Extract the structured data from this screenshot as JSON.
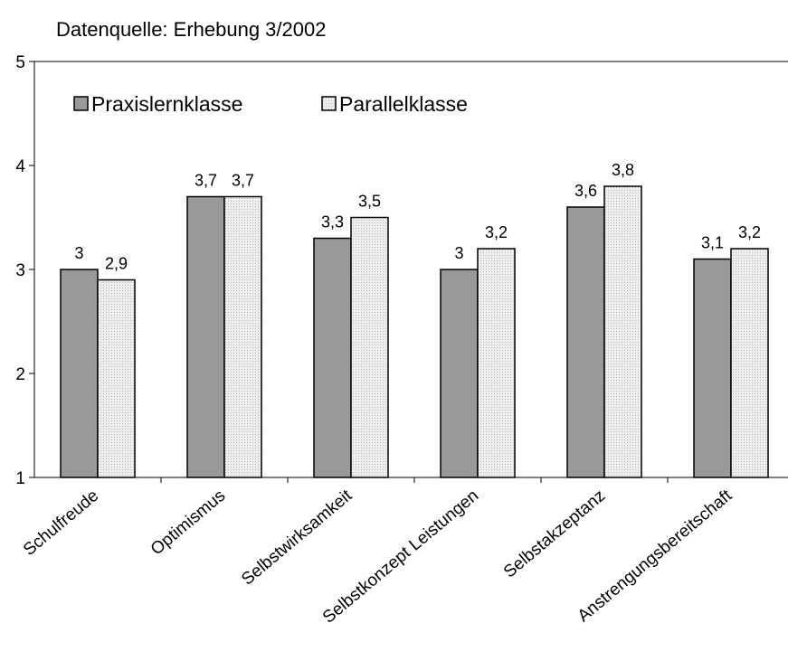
{
  "chart_data": {
    "type": "bar",
    "title": "Datenquelle: Erhebung 3/2002",
    "categories": [
      "Schulfreude",
      "Optimismus",
      "Selbstwirksamkeit",
      "Selbstkonzept Leistungen",
      "Selbstakzeptanz",
      "Anstrengungsbereitschaft"
    ],
    "series": [
      {
        "name": "Praxislernklasse",
        "color": "#999999",
        "values": [
          3,
          3.7,
          3.3,
          3,
          3.6,
          3.1
        ],
        "value_labels": [
          "3",
          "3,7",
          "3,3",
          "3",
          "3,6",
          "3,1"
        ]
      },
      {
        "name": "Parallelklasse",
        "color": "#e6e6e6",
        "values": [
          2.9,
          3.7,
          3.5,
          3.2,
          3.8,
          3.2
        ],
        "value_labels": [
          "2,9",
          "3,7",
          "3,5",
          "3,2",
          "3,8",
          "3,2"
        ]
      }
    ],
    "ylim": [
      1,
      5
    ],
    "yticks": [
      1,
      2,
      3,
      4,
      5
    ]
  }
}
